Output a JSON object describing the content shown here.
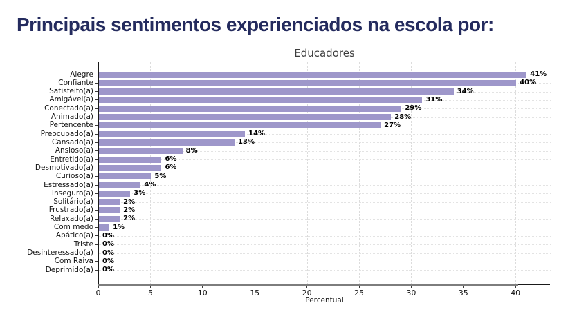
{
  "page": {
    "title": "Principais sentimentos experienciados na escola por:",
    "title_color": "#242b5e"
  },
  "chart_data": {
    "type": "bar",
    "orientation": "horizontal",
    "title": "Educadores",
    "xlabel": "Percentual",
    "ylabel": "",
    "xlim": [
      0,
      43.4
    ],
    "xticks": [
      0,
      5,
      10,
      15,
      20,
      25,
      30,
      35,
      40
    ],
    "grid": true,
    "legend": "none",
    "bar_color": "#9e97ca",
    "categories": [
      "Alegre",
      "Confiante",
      "Satisfeito(a)",
      "Amigável(a)",
      "Conectado(a)",
      "Animado(a)",
      "Pertencente",
      "Preocupado(a)",
      "Cansado(a)",
      "Ansioso(a)",
      "Entretido(a)",
      "Desmotivado(a)",
      "Curioso(a)",
      "Estressado(a)",
      "Inseguro(a)",
      "Solitário(a)",
      "Frustrado(a)",
      "Relaxado(a)",
      "Com medo",
      "Apático(a)",
      "Triste",
      "Desinteressado(a)",
      "Com Raiva",
      "Deprimido(a)"
    ],
    "values": [
      41,
      40,
      34,
      31,
      29,
      28,
      27,
      14,
      13,
      8,
      6,
      6,
      5,
      4,
      3,
      2,
      2,
      2,
      1,
      0,
      0,
      0,
      0,
      0
    ],
    "value_labels": [
      "41%",
      "40%",
      "34%",
      "31%",
      "29%",
      "28%",
      "27%",
      "14%",
      "13%",
      "8%",
      "6%",
      "6%",
      "5%",
      "4%",
      "3%",
      "2%",
      "2%",
      "2%",
      "1%",
      "0%",
      "0%",
      "0%",
      "0%",
      "0%"
    ]
  }
}
